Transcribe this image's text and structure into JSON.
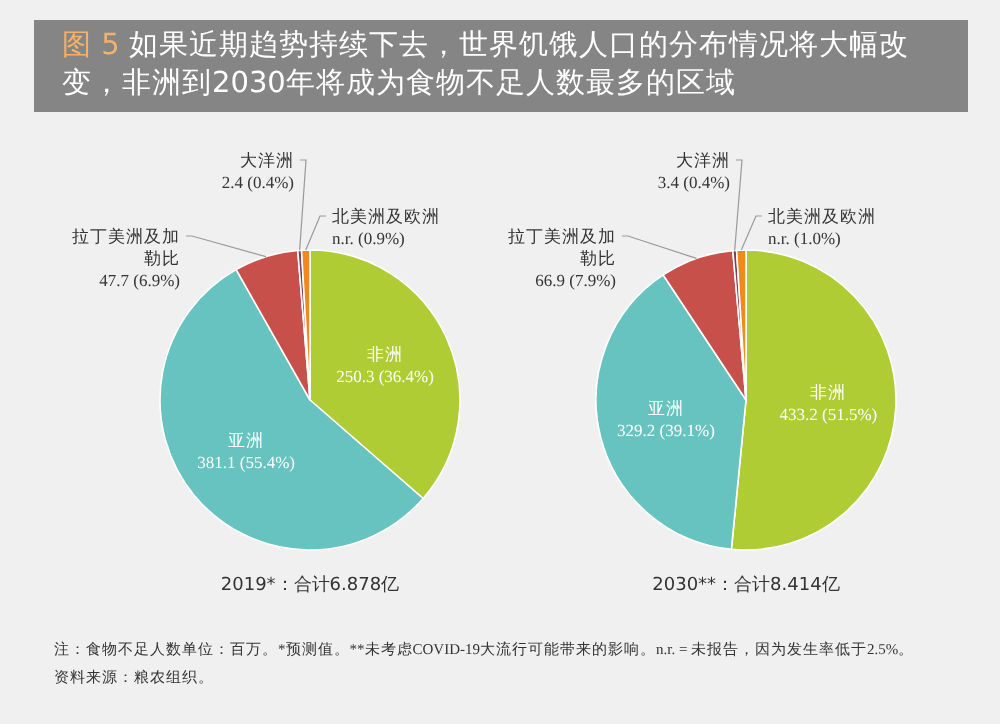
{
  "chart_data": [
    {
      "type": "other",
      "title": "图 5 如果近期趋势持续下去，世界饥饿人口的分布情况将大幅改变，非洲到2030年将成为食物不足人数最多的区域",
      "annotations": [
        "注：食物不足人数单位：百万。*预测值。**未考虑COVID-19大流行可能带来的影响。n.r. = 未报告，因为发生率低于2.5%。",
        "资料来源：粮农组织。"
      ]
    },
    {
      "type": "pie",
      "title": "2019*：合计6.878亿",
      "categories": [
        "非洲",
        "亚洲",
        "拉丁美洲及加勒比",
        "大洋洲",
        "北美洲及欧洲"
      ],
      "values": [
        36.4,
        55.4,
        6.9,
        0.4,
        0.9
      ],
      "value_labels": [
        "250.3 (36.4%)",
        "381.1 (55.4%)",
        "47.7 (6.9%)",
        "2.4 (0.4%)",
        "n.r. (0.9%)"
      ],
      "colors": [
        "#b0cc35",
        "#67c3c0",
        "#c8504b",
        "#7a3f5a",
        "#f08a1c"
      ]
    },
    {
      "type": "pie",
      "title": "2030**：合计8.414亿",
      "categories": [
        "非洲",
        "亚洲",
        "拉丁美洲及加勒比",
        "大洋洲",
        "北美洲及欧洲"
      ],
      "values": [
        51.5,
        39.1,
        7.9,
        0.4,
        1.0
      ],
      "value_labels": [
        "433.2 (51.5%)",
        "329.2 (39.1%)",
        "66.9 (7.9%)",
        "3.4 (0.4%)",
        "n.r. (1.0%)"
      ],
      "colors": [
        "#b0cc35",
        "#67c3c0",
        "#c8504b",
        "#7a3f5a",
        "#f08a1c"
      ]
    }
  ]
}
